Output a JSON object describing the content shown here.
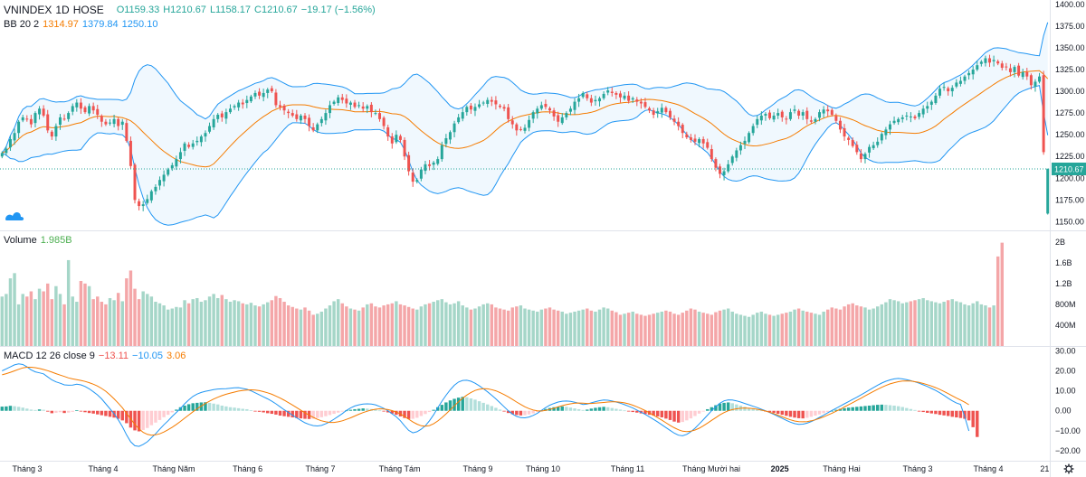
{
  "header": {
    "symbol": "VNINDEX",
    "interval": "1D",
    "exchange": "HOSE",
    "open": "O1159.33",
    "high": "H1210.67",
    "low": "L1158.17",
    "close": "C1210.67",
    "change": "−19.17 (−1.56%)"
  },
  "bb_legend": {
    "name": "BB 20 2",
    "basis": "1314.97",
    "upper": "1379.84",
    "lower": "1250.10"
  },
  "volume_legend": {
    "name": "Volume",
    "value": "1.985B"
  },
  "macd_legend": {
    "name": "MACD 12 26 close 9",
    "hist": "−13.11",
    "macd": "−10.05",
    "signal": "3.06"
  },
  "colors": {
    "up": "#26a69a",
    "down": "#ef5350",
    "band": "#2196f3",
    "basis": "#f57c00",
    "vol_up": "#a5d6c8",
    "vol_down": "#f4a6a8",
    "cloud_fill": "#e3f2fd"
  },
  "chart_data": {
    "type": "candlestick",
    "price_axis": {
      "ticks": [
        "1400.00",
        "1375.00",
        "1350.00",
        "1325.00",
        "1300.00",
        "1275.00",
        "1250.00",
        "1225.00",
        "1200.00",
        "1175.00",
        "1150.00"
      ],
      "range": [
        1140,
        1405
      ],
      "last_price_label": "1210.67"
    },
    "volume_axis": {
      "ticks": [
        "2B",
        "1.6B",
        "1.2B",
        "800M",
        "400M"
      ],
      "range": [
        0,
        2.1
      ]
    },
    "macd_axis": {
      "ticks": [
        "30.00",
        "20.00",
        "10.00",
        "0.00",
        "−10.00",
        "−20.00"
      ],
      "range": [
        -25,
        32
      ]
    },
    "time_axis": [
      "Tháng 3",
      "Tháng 4",
      "Tháng Năm",
      "Tháng 6",
      "Tháng 7",
      "Tháng Tám",
      "Tháng 9",
      "Tháng 10",
      "Tháng 11",
      "Tháng Mười hai",
      "2025",
      "Tháng Hai",
      "Tháng 3",
      "Tháng 4",
      "21"
    ],
    "closes": [
      1229,
      1234,
      1245,
      1252,
      1265,
      1270,
      1268,
      1262,
      1275,
      1280,
      1272,
      1255,
      1248,
      1260,
      1270,
      1268,
      1275,
      1283,
      1287,
      1280,
      1276,
      1283,
      1278,
      1273,
      1265,
      1262,
      1264,
      1268,
      1260,
      1265,
      1243,
      1214,
      1175,
      1168,
      1170,
      1176,
      1185,
      1190,
      1198,
      1204,
      1210,
      1215,
      1222,
      1230,
      1240,
      1236,
      1240,
      1243,
      1248,
      1252,
      1260,
      1268,
      1273,
      1270,
      1276,
      1280,
      1283,
      1287,
      1285,
      1290,
      1294,
      1298,
      1295,
      1298,
      1302,
      1300,
      1284,
      1282,
      1278,
      1275,
      1272,
      1268,
      1272,
      1268,
      1260,
      1255,
      1262,
      1268,
      1275,
      1284,
      1288,
      1293,
      1290,
      1286,
      1287,
      1282,
      1284,
      1280,
      1283,
      1276,
      1275,
      1268,
      1260,
      1248,
      1240,
      1250,
      1244,
      1225,
      1208,
      1196,
      1198,
      1210,
      1216,
      1214,
      1218,
      1222,
      1238,
      1246,
      1253,
      1263,
      1270,
      1276,
      1282,
      1279,
      1282,
      1285,
      1287,
      1290,
      1288,
      1285,
      1282,
      1280,
      1268,
      1262,
      1255,
      1256,
      1258,
      1267,
      1276,
      1280,
      1284,
      1282,
      1278,
      1271,
      1265,
      1270,
      1275,
      1280,
      1288,
      1292,
      1298,
      1292,
      1287,
      1290,
      1292,
      1297,
      1301,
      1298,
      1296,
      1293,
      1295,
      1289,
      1292,
      1288,
      1286,
      1282,
      1278,
      1273,
      1277,
      1281,
      1276,
      1270,
      1265,
      1260,
      1252,
      1247,
      1244,
      1242,
      1245,
      1240,
      1235,
      1222,
      1212,
      1205,
      1208,
      1216,
      1225,
      1232,
      1238,
      1243,
      1252,
      1260,
      1268,
      1272,
      1274,
      1269,
      1272,
      1275,
      1270,
      1268,
      1276,
      1279,
      1272,
      1276,
      1268,
      1265,
      1268,
      1276,
      1279,
      1277,
      1273,
      1266,
      1256,
      1248,
      1244,
      1237,
      1230,
      1222,
      1228,
      1236,
      1238,
      1242,
      1251,
      1256,
      1262,
      1266,
      1268,
      1270,
      1272,
      1271,
      1269,
      1275,
      1280,
      1283,
      1288,
      1295,
      1303,
      1305,
      1300,
      1304,
      1310,
      1312,
      1317,
      1321,
      1325,
      1330,
      1334,
      1338,
      1333,
      1336,
      1332,
      1327,
      1328,
      1322,
      1328,
      1318,
      1322,
      1317,
      1307,
      1311,
      1317,
      1230,
      1211
    ],
    "volumes": [
      0.95,
      1.0,
      1.3,
      1.4,
      0.8,
      1.0,
      0.95,
      1.05,
      0.9,
      1.1,
      1.05,
      1.2,
      0.9,
      1.15,
      1.0,
      0.8,
      1.65,
      0.95,
      0.85,
      1.25,
      1.2,
      1.15,
      0.9,
      0.95,
      0.85,
      0.8,
      0.92,
      0.88,
      1.02,
      0.86,
      1.3,
      1.45,
      1.1,
      0.9,
      1.05,
      1.0,
      0.95,
      0.85,
      0.82,
      0.78,
      0.7,
      0.72,
      0.75,
      0.74,
      0.88,
      0.82,
      0.9,
      0.92,
      0.85,
      0.88,
      0.95,
      1.0,
      0.92,
      0.98,
      0.9,
      0.85,
      0.88,
      0.86,
      0.82,
      0.8,
      0.83,
      0.78,
      0.76,
      0.8,
      0.84,
      0.88,
      0.96,
      0.92,
      0.85,
      0.78,
      0.75,
      0.72,
      0.7,
      0.74,
      0.68,
      0.6,
      0.62,
      0.66,
      0.72,
      0.78,
      0.86,
      0.9,
      0.82,
      0.76,
      0.72,
      0.7,
      0.68,
      0.74,
      0.8,
      0.82,
      0.76,
      0.74,
      0.78,
      0.8,
      0.82,
      0.86,
      0.8,
      0.78,
      0.75,
      0.72,
      0.7,
      0.76,
      0.8,
      0.82,
      0.85,
      0.88,
      0.9,
      0.84,
      0.8,
      0.82,
      0.86,
      0.78,
      0.74,
      0.7,
      0.72,
      0.76,
      0.8,
      0.82,
      0.8,
      0.74,
      0.72,
      0.7,
      0.68,
      0.74,
      0.76,
      0.78,
      0.72,
      0.7,
      0.68,
      0.66,
      0.7,
      0.72,
      0.74,
      0.7,
      0.68,
      0.66,
      0.62,
      0.64,
      0.66,
      0.68,
      0.7,
      0.72,
      0.68,
      0.66,
      0.7,
      0.74,
      0.72,
      0.68,
      0.65,
      0.6,
      0.62,
      0.64,
      0.66,
      0.62,
      0.6,
      0.58,
      0.6,
      0.62,
      0.64,
      0.66,
      0.68,
      0.66,
      0.62,
      0.6,
      0.64,
      0.68,
      0.72,
      0.7,
      0.66,
      0.64,
      0.62,
      0.6,
      0.65,
      0.68,
      0.7,
      0.72,
      0.66,
      0.62,
      0.6,
      0.58,
      0.56,
      0.6,
      0.64,
      0.66,
      0.62,
      0.6,
      0.58,
      0.6,
      0.62,
      0.64,
      0.66,
      0.7,
      0.72,
      0.68,
      0.66,
      0.64,
      0.62,
      0.6,
      0.66,
      0.7,
      0.74,
      0.72,
      0.7,
      0.76,
      0.8,
      0.82,
      0.78,
      0.76,
      0.74,
      0.7,
      0.72,
      0.76,
      0.8,
      0.84,
      0.9,
      0.88,
      0.86,
      0.82,
      0.84,
      0.86,
      0.88,
      0.9,
      0.92,
      0.88,
      0.86,
      0.84,
      0.82,
      0.85,
      0.88,
      0.9,
      0.86,
      0.84,
      0.8,
      0.78,
      0.82,
      0.86,
      0.8,
      0.78,
      0.74,
      0.78,
      1.72,
      1.985
    ],
    "macd_hist": [
      2.1,
      2.2,
      2.5,
      2.3,
      2.0,
      1.6,
      1.1,
      0.6,
      0.4,
      0.7,
      0.5,
      -0.4,
      -1.2,
      -1.0,
      -0.7,
      -1.1,
      -0.9,
      -0.5,
      0.3,
      -0.2,
      -0.7,
      -1.1,
      -1.4,
      -1.8,
      -2.2,
      -2.6,
      -3.0,
      -3.4,
      -4.0,
      -4.8,
      -6.2,
      -8.4,
      -9.8,
      -10.3,
      -9.6,
      -8.6,
      -7.2,
      -5.9,
      -4.6,
      -3.2,
      -2.0,
      -0.8,
      0.6,
      1.8,
      2.6,
      3.3,
      3.8,
      4.0,
      4.2,
      4.3,
      4.0,
      3.6,
      3.2,
      2.6,
      2.2,
      1.8,
      1.6,
      1.3,
      1.0,
      0.8,
      0.3,
      -0.2,
      -0.5,
      -0.8,
      -1.2,
      -1.5,
      -1.9,
      -2.4,
      -2.7,
      -3.0,
      -3.3,
      -3.6,
      -3.8,
      -4.0,
      -4.1,
      -4.0,
      -3.6,
      -3.2,
      -2.7,
      -2.1,
      -1.5,
      -0.9,
      -0.4,
      0.2,
      0.5,
      0.8,
      1.0,
      1.2,
      1.1,
      0.9,
      0.6,
      0.2,
      -0.3,
      -0.8,
      -1.4,
      -2.0,
      -2.8,
      -3.6,
      -4.1,
      -4.0,
      -3.5,
      -2.6,
      -1.6,
      -0.6,
      0.5,
      1.8,
      3.0,
      4.2,
      5.2,
      6.0,
      6.6,
      7.0,
      6.8,
      6.2,
      5.6,
      4.8,
      4.0,
      3.2,
      2.4,
      1.5,
      0.6,
      -0.3,
      -1.1,
      -1.7,
      -2.1,
      -2.3,
      -2.2,
      -1.8,
      -1.3,
      -0.6,
      0.2,
      0.9,
      1.4,
      1.8,
      2.0,
      2.2,
      2.0,
      1.6,
      1.2,
      0.8,
      0.4,
      0.6,
      1.1,
      1.5,
      1.8,
      2.0,
      1.8,
      1.4,
      1.0,
      0.6,
      0.2,
      -0.2,
      -0.6,
      -0.9,
      -1.3,
      -1.6,
      -2.0,
      -2.4,
      -2.8,
      -3.3,
      -3.9,
      -4.6,
      -5.4,
      -5.9,
      -5.6,
      -4.8,
      -3.8,
      -2.6,
      -1.4,
      -0.3,
      0.8,
      1.8,
      2.8,
      3.6,
      4.0,
      4.2,
      3.8,
      3.2,
      2.6,
      2.0,
      1.4,
      1.0,
      0.6,
      0.2,
      -0.2,
      -0.6,
      -1.0,
      -1.5,
      -2.0,
      -2.5,
      -3.0,
      -3.4,
      -3.7,
      -3.8,
      -3.5,
      -3.0,
      -2.4,
      -1.8,
      -1.2,
      -0.6,
      0.0,
      0.5,
      1.0,
      1.3,
      1.6,
      1.8,
      2.0,
      2.2,
      2.4,
      2.6,
      2.8,
      3.0,
      3.1,
      3.0,
      2.8,
      2.6,
      2.3,
      1.9,
      1.4,
      0.9,
      0.4,
      -0.1,
      -0.6,
      -1.0,
      -1.3,
      -1.6,
      -2.0,
      -2.3,
      -2.6,
      -3.0,
      -3.3,
      -3.6,
      -4.0,
      -4.8,
      -8.2,
      -13.11
    ],
    "macd_line": [
      20,
      21,
      22,
      23,
      23.5,
      23.2,
      22,
      20.5,
      19.5,
      19,
      18.5,
      17,
      15.5,
      14.5,
      13.8,
      13,
      12.8,
      12.9,
      13.3,
      13,
      12.2,
      11,
      9.5,
      8,
      6,
      3.5,
      1,
      -1.5,
      -4.5,
      -8,
      -12,
      -15.5,
      -17.5,
      -17.8,
      -16.8,
      -15.5,
      -13.5,
      -11.5,
      -9.2,
      -7,
      -5,
      -2.8,
      -0.8,
      1.2,
      3.5,
      5.5,
      7.2,
      8.4,
      9.2,
      9.8,
      10.2,
      10.6,
      10.9,
      11,
      11.1,
      11.3,
      11.5,
      11.6,
      11.2,
      10.8,
      10,
      9,
      8,
      7,
      6,
      4.8,
      3.5,
      2,
      0.5,
      -0.8,
      -2.2,
      -3.5,
      -4.8,
      -6,
      -6.8,
      -7.4,
      -7.6,
      -7.3,
      -6.5,
      -5.5,
      -4.2,
      -2.8,
      -1.4,
      0.2,
      1.4,
      2.4,
      3,
      3.4,
      3.5,
      3.4,
      3,
      2.2,
      1.2,
      0,
      -1.5,
      -3,
      -5,
      -7.5,
      -9.8,
      -11,
      -10.5,
      -9.2,
      -7.5,
      -5,
      -2,
      1.5,
      4.8,
      7.8,
      10.5,
      12.8,
      14.4,
      15.2,
      15.3,
      14.8,
      13.8,
      12.5,
      11,
      9.5,
      7.8,
      6,
      4,
      2,
      0,
      -1.6,
      -2.8,
      -3.4,
      -3.5,
      -3.1,
      -2.3,
      -1.2,
      0.2,
      1.6,
      2.8,
      3.7,
      4.4,
      4.8,
      4.9,
      4.7,
      4.3,
      3.8,
      3.2,
      3.4,
      4,
      4.6,
      5.1,
      5.4,
      5.3,
      4.9,
      4.4,
      3.8,
      3.1,
      2.3,
      1.4,
      0.4,
      -0.7,
      -1.8,
      -3,
      -4.3,
      -5.6,
      -7,
      -8.4,
      -9.8,
      -11.2,
      -12.2,
      -12.5,
      -11.8,
      -10.5,
      -8.7,
      -6.6,
      -4.4,
      -2.2,
      0,
      2,
      3.8,
      5,
      5.5,
      5.4,
      5,
      4.4,
      3.7,
      3,
      2.3,
      1.6,
      0.8,
      0,
      -0.9,
      -1.8,
      -2.8,
      -3.8,
      -4.8,
      -5.7,
      -6.4,
      -6.8,
      -6.7,
      -6.2,
      -5.4,
      -4.4,
      -3.3,
      -2.2,
      -1,
      0.2,
      1.3,
      2.4,
      3.5,
      4.6,
      5.7,
      6.8,
      8,
      9.2,
      10.4,
      11.6,
      12.8,
      13.9,
      14.8,
      15.5,
      16,
      16.2,
      16,
      15.6,
      15.1,
      14.5,
      13.8,
      13,
      12.2,
      11.2,
      10.2,
      9,
      7.7,
      6.3,
      5,
      3.9,
      3.2,
      -3,
      -10.05
    ],
    "signal_line": [
      18,
      18.6,
      19.3,
      20,
      20.8,
      21.5,
      21.8,
      21.8,
      21.6,
      21.2,
      20.7,
      20.1,
      19.4,
      18.6,
      17.9,
      17.2,
      16.5,
      16,
      15.6,
      15.2,
      14.7,
      14.1,
      13.3,
      12.4,
      11.2,
      9.8,
      8,
      6,
      3.8,
      1.5,
      -1.2,
      -4,
      -6.8,
      -9,
      -10.8,
      -11.8,
      -12.2,
      -12,
      -11.5,
      -10.6,
      -9.5,
      -8.2,
      -6.8,
      -5.3,
      -3.7,
      -2.1,
      -0.5,
      1,
      2.4,
      3.7,
      4.8,
      5.9,
      6.8,
      7.6,
      8.3,
      8.9,
      9.4,
      9.9,
      10.2,
      10.4,
      10.5,
      10.4,
      10.1,
      9.6,
      9,
      8.3,
      7.4,
      6.4,
      5.3,
      4.1,
      2.9,
      1.6,
      0.3,
      -1,
      -2.2,
      -3.3,
      -4.3,
      -5,
      -5.5,
      -5.8,
      -5.8,
      -5.5,
      -5,
      -4.3,
      -3.5,
      -2.6,
      -1.7,
      -0.9,
      -0.2,
      0.4,
      0.8,
      1,
      0.9,
      0.6,
      0.1,
      -0.6,
      -1.6,
      -2.8,
      -4.2,
      -5.6,
      -6.7,
      -7.5,
      -7.7,
      -7.4,
      -6.5,
      -5.1,
      -3.4,
      -1.5,
      0.5,
      2.5,
      4.5,
      6.3,
      7.9,
      9.2,
      10.2,
      10.8,
      11.1,
      11,
      10.6,
      10,
      9.1,
      8.1,
      7,
      5.7,
      4.4,
      3.2,
      2,
      1.1,
      0.4,
      0,
      -0.1,
      0.2,
      0.7,
      1.3,
      2,
      2.6,
      3.1,
      3.5,
      3.8,
      3.9,
      3.8,
      3.7,
      3.7,
      3.8,
      4,
      4.2,
      4.4,
      4.5,
      4.5,
      4.3,
      4,
      3.5,
      2.8,
      2,
      1.1,
      0.1,
      -1,
      -2.2,
      -3.4,
      -4.7,
      -6,
      -7.3,
      -8.5,
      -9.5,
      -10.2,
      -10.4,
      -10.2,
      -9.6,
      -8.7,
      -7.5,
      -6.2,
      -4.8,
      -3.4,
      -2,
      -0.9,
      0,
      0.6,
      1,
      1.3,
      1.4,
      1.3,
      1.1,
      0.8,
      0.4,
      -0.1,
      -0.7,
      -1.4,
      -2.2,
      -3,
      -3.8,
      -4.5,
      -5.1,
      -5.4,
      -5.5,
      -5.4,
      -5,
      -4.5,
      -3.8,
      -3,
      -2.1,
      -1.2,
      -0.2,
      0.8,
      1.9,
      3,
      4.1,
      5.2,
      6.3,
      7.5,
      8.6,
      9.7,
      10.8,
      11.8,
      12.7,
      13.5,
      14.1,
      14.6,
      14.9,
      15,
      14.9,
      14.6,
      14.2,
      13.7,
      13.1,
      12.4,
      11.6,
      10.7,
      9.7,
      8.6,
      7.5,
      6.4,
      5.4,
      4.3,
      3.06
    ]
  }
}
